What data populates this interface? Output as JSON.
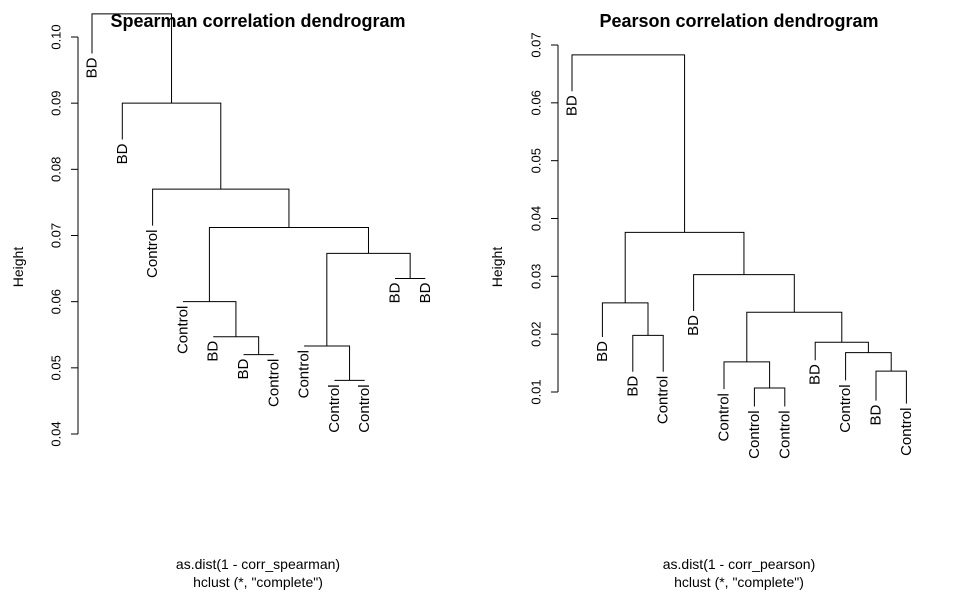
{
  "chart_data": [
    {
      "type": "dendrogram",
      "title": "Spearman correlation dendrogram",
      "ylabel": "Height",
      "xlabel_line1": "as.dist(1 - corr_spearman)",
      "xlabel_line2": "hclust (*, \"complete\")",
      "ylim": [
        0.04,
        0.105
      ],
      "yticks": [
        0.04,
        0.05,
        0.06,
        0.07,
        0.08,
        0.09,
        0.1
      ],
      "ytick_labels": [
        "0.04",
        "0.05",
        "0.06",
        "0.07",
        "0.08",
        "0.09",
        "0.10"
      ],
      "leaves": [
        "BD",
        "BD",
        "Control",
        "Control",
        "BD",
        "BD",
        "Control",
        "Control",
        "Control",
        "Control",
        "BD",
        "BD"
      ],
      "leaf_heights": [
        0.0975,
        0.0845,
        0.0715,
        0.06,
        0.0547,
        0.052,
        0.052,
        0.0533,
        0.0481,
        0.0481,
        0.0635,
        0.0635
      ],
      "merges": [
        {
          "left": 5,
          "right": 6,
          "height": 0.052
        },
        {
          "left": 8,
          "right": 9,
          "height": 0.0481
        },
        {
          "left": 4,
          "right": "m0",
          "height": 0.0547
        },
        {
          "left": 7,
          "right": "m1",
          "height": 0.0533
        },
        {
          "left": 3,
          "right": "m2",
          "height": 0.06
        },
        {
          "left": 10,
          "right": 11,
          "height": 0.0635
        },
        {
          "left": "m3",
          "right": "m5",
          "height": 0.0673
        },
        {
          "left": "m4",
          "right": "m6",
          "height": 0.0712
        },
        {
          "left": 2,
          "right": "m7",
          "height": 0.077
        },
        {
          "left": 1,
          "right": "m8",
          "height": 0.09
        },
        {
          "left": 0,
          "right": "m9",
          "height": 0.1035
        }
      ]
    },
    {
      "type": "dendrogram",
      "title": "Pearson correlation dendrogram",
      "ylabel": "Height",
      "xlabel_line1": "as.dist(1 - corr_pearson)",
      "xlabel_line2": "hclust (*, \"complete\")",
      "ylim": [
        0.01,
        0.07
      ],
      "yticks": [
        0.01,
        0.02,
        0.03,
        0.04,
        0.05,
        0.06,
        0.07
      ],
      "ytick_labels": [
        "0.01",
        "0.02",
        "0.03",
        "0.04",
        "0.05",
        "0.06",
        "0.07"
      ],
      "leaves": [
        "BD",
        "BD",
        "BD",
        "Control",
        "BD",
        "Control",
        "Control",
        "Control",
        "BD",
        "Control",
        "BD",
        "Control"
      ],
      "leaf_heights": [
        0.062,
        0.0195,
        0.0135,
        0.0135,
        0.024,
        0.0105,
        0.0075,
        0.0075,
        0.0155,
        0.012,
        0.0085,
        0.008
      ],
      "merges": [
        {
          "left": 2,
          "right": 3,
          "height": 0.0198
        },
        {
          "left": 1,
          "right": "m0",
          "height": 0.0254
        },
        {
          "left": 6,
          "right": 7,
          "height": 0.0107
        },
        {
          "left": 5,
          "right": "m2",
          "height": 0.0152
        },
        {
          "left": 10,
          "right": 11,
          "height": 0.0136
        },
        {
          "left": 9,
          "right": "m4",
          "height": 0.0168
        },
        {
          "left": 8,
          "right": "m5",
          "height": 0.0186
        },
        {
          "left": "m3",
          "right": "m6",
          "height": 0.0238
        },
        {
          "left": 4,
          "right": "m7",
          "height": 0.0303
        },
        {
          "left": "m1",
          "right": "m8",
          "height": 0.0376
        },
        {
          "left": 0,
          "right": "m9",
          "height": 0.0683
        }
      ]
    }
  ]
}
